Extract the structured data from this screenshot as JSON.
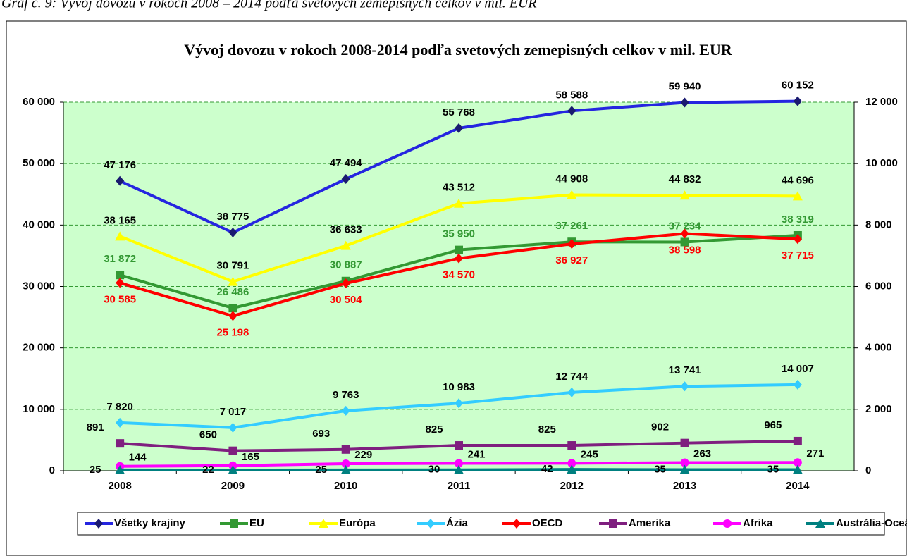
{
  "caption": "Graf č. 9: Vývoj dovozu v rokoch 2008 – 2014 podľa svetových zemepisných celkov v mil. EUR",
  "chart_data": {
    "type": "line",
    "title": "Vývoj dovozu v rokoch 2008-2014 podľa svetových zemepisných celkov v mil. EUR",
    "categories": [
      "2008",
      "2009",
      "2010",
      "2011",
      "2012",
      "2013",
      "2014"
    ],
    "ylim": [
      0,
      60000
    ],
    "yticks": [
      {
        "value": 0,
        "label": "0"
      },
      {
        "value": 10000,
        "label": "10 000"
      },
      {
        "value": 20000,
        "label": "20 000"
      },
      {
        "value": 30000,
        "label": "30 000"
      },
      {
        "value": 40000,
        "label": "40 000"
      },
      {
        "value": 50000,
        "label": "50 000"
      },
      {
        "value": 60000,
        "label": "60 000"
      }
    ],
    "y2lim": [
      0,
      12000
    ],
    "y2ticks": [
      {
        "value": 0,
        "label": "0"
      },
      {
        "value": 2000,
        "label": "2 000"
      },
      {
        "value": 4000,
        "label": "4 000"
      },
      {
        "value": 6000,
        "label": "6 000"
      },
      {
        "value": 8000,
        "label": "8 000"
      },
      {
        "value": 10000,
        "label": "10 000"
      },
      {
        "value": 12000,
        "label": "12 000"
      }
    ],
    "grid": true,
    "legend": "bottom",
    "series": [
      {
        "name": "Všetky krajiny",
        "color": "#2525e0",
        "marker": "diamond",
        "marker_color": "#1a1a70",
        "label_color": "#000000",
        "values": [
          47176,
          38775,
          47494,
          55768,
          58588,
          59940,
          60152
        ],
        "value_labels": [
          "47 176",
          "38 775",
          "47 494",
          "55 768",
          "58 588",
          "59 940",
          "60 152"
        ]
      },
      {
        "name": "EU",
        "color": "#339933",
        "marker": "square",
        "marker_color": "#339933",
        "label_color": "#339933",
        "values": [
          31872,
          26486,
          30887,
          35950,
          37261,
          37234,
          38319
        ],
        "value_labels": [
          "31 872",
          "26 486",
          "30 887",
          "35 950",
          "37 261",
          "37 234",
          "38 319"
        ]
      },
      {
        "name": "Európa",
        "color": "#ffff00",
        "marker": "triangle",
        "marker_color": "#ffff00",
        "label_color": "#000000",
        "values": [
          38165,
          30791,
          36633,
          43512,
          44908,
          44832,
          44696
        ],
        "value_labels": [
          "38 165",
          "30 791",
          "36 633",
          "43 512",
          "44 908",
          "44 832",
          "44 696"
        ]
      },
      {
        "name": "Ázia",
        "color": "#33ccff",
        "marker": "diamond",
        "marker_color": "#33ccff",
        "label_color": "#000000",
        "values": [
          7820,
          7017,
          9763,
          10983,
          12744,
          13741,
          14007
        ],
        "value_labels": [
          "7 820",
          "7 017",
          "9 763",
          "10 983",
          "12 744",
          "13 741",
          "14 007"
        ]
      },
      {
        "name": "OECD",
        "color": "#ff0000",
        "marker": "diamond",
        "marker_color": "#ff0000",
        "label_color": "#ff0000",
        "values": [
          30585,
          25198,
          30504,
          34570,
          36927,
          38598,
          37715
        ],
        "value_labels": [
          "30 585",
          "25 198",
          "30 504",
          "34 570",
          "36 927",
          "38 598",
          "37 715"
        ]
      },
      {
        "name": "Amerika",
        "color": "#7f1f7f",
        "marker": "square",
        "marker_color": "#7f1f7f",
        "label_color": "#000000",
        "axis": "y2",
        "values": [
          891,
          650,
          693,
          825,
          825,
          902,
          965
        ]
      },
      {
        "name": "Afrika",
        "color": "#ff00ff",
        "marker": "circle",
        "marker_color": "#ff00ff",
        "label_color": "#000000",
        "axis": "y2",
        "values": [
          144,
          165,
          229,
          241,
          245,
          263,
          271
        ]
      },
      {
        "name": "Austrália-Oceánia",
        "color": "#008080",
        "marker": "triangle",
        "marker_color": "#008080",
        "label_color": "#000000",
        "axis": "y2",
        "values": [
          25,
          22,
          25,
          30,
          42,
          35,
          35
        ]
      }
    ]
  }
}
